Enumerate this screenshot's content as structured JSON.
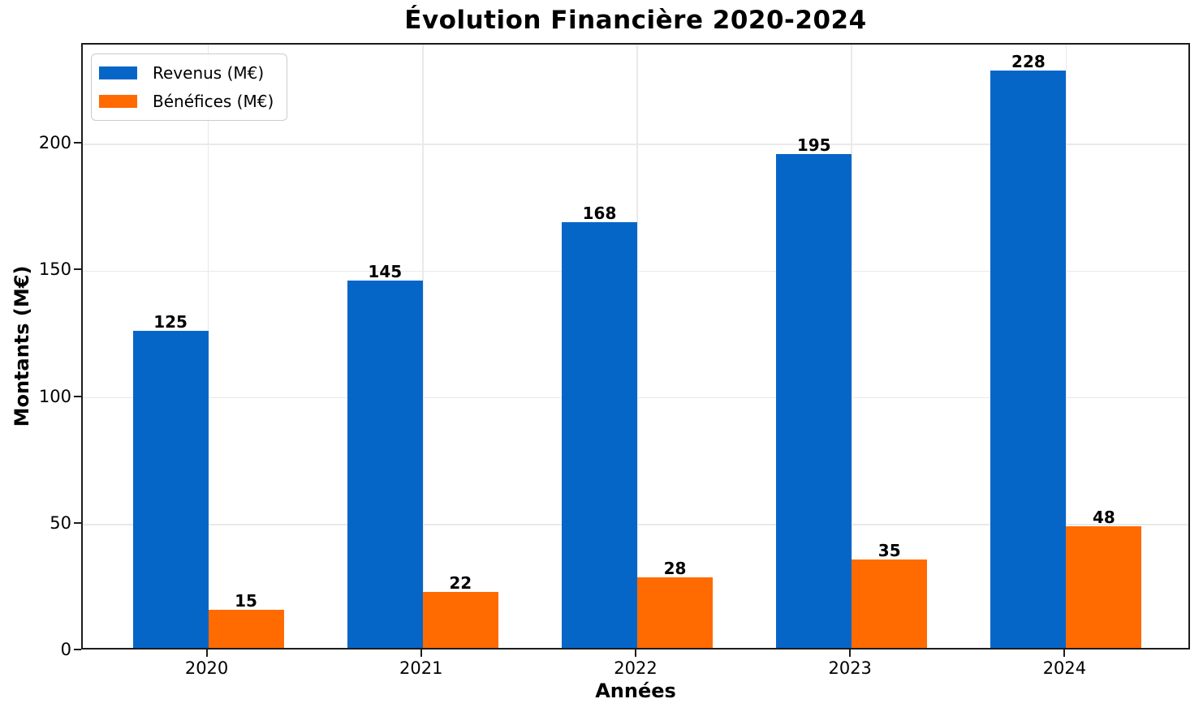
{
  "chart_data": {
    "type": "bar",
    "title": "Évolution Financière 2020-2024",
    "xlabel": "Années",
    "ylabel": "Montants (M€)",
    "categories": [
      "2020",
      "2021",
      "2022",
      "2023",
      "2024"
    ],
    "series": [
      {
        "name": "Revenus (M€)",
        "color": "#0666c8",
        "values": [
          125,
          145,
          168,
          195,
          228
        ]
      },
      {
        "name": "Bénéfices (M€)",
        "color": "#ff6b00",
        "values": [
          15,
          22,
          28,
          35,
          48
        ]
      }
    ],
    "ylim": [
      0,
      239.4
    ],
    "yticks": [
      0,
      50,
      100,
      150,
      200
    ],
    "bar_value_labels": [
      [
        125,
        145,
        168,
        195,
        228
      ],
      [
        15,
        22,
        28,
        35,
        48
      ]
    ],
    "grid": true,
    "legend_position": "upper left",
    "colors": {
      "revenus": "#0666c8",
      "benefices": "#ff6b00",
      "grid": "#e9e9e9",
      "spine": "#1c1c1c",
      "text": "#000000"
    }
  }
}
